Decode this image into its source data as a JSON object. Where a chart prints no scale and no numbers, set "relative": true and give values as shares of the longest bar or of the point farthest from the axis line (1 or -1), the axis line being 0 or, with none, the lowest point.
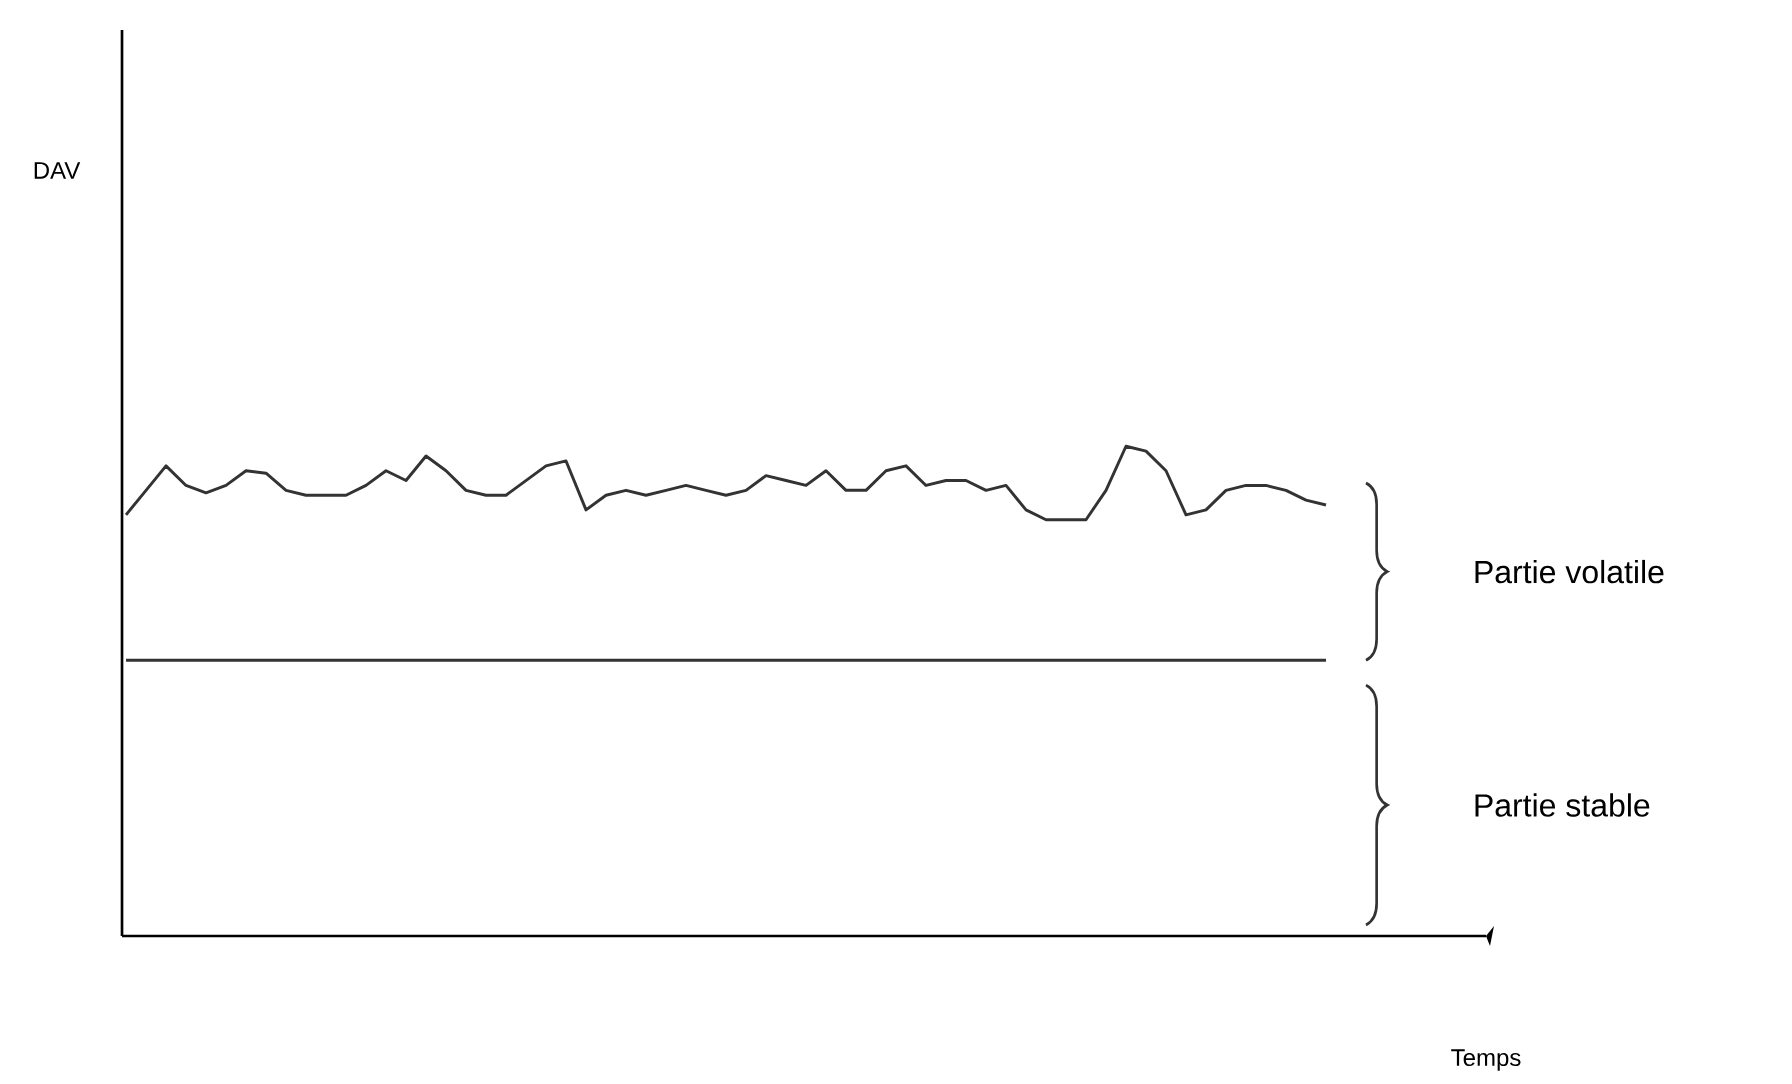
{
  "chart_data": {
    "type": "line",
    "relative": true,
    "tick_labels": false,
    "marker": "none",
    "line_style": "solid",
    "categories": [
      null,
      null,
      null,
      null,
      null,
      null,
      null,
      null,
      null,
      null,
      null,
      null,
      null,
      null,
      null,
      null,
      null,
      null,
      null,
      null,
      null,
      null,
      null,
      null,
      null,
      null,
      null,
      null,
      null,
      null,
      null,
      null,
      null,
      null,
      null,
      null,
      null,
      null,
      null,
      null,
      null,
      null,
      null,
      null,
      null,
      null,
      null,
      null,
      null,
      null,
      null,
      null,
      null,
      null,
      null,
      null,
      null,
      null,
      null,
      null,
      null
    ],
    "series": [
      {
        "color": "#333333",
        "values": [
          0.86,
          0.91,
          0.96,
          0.92,
          0.905,
          0.92,
          0.95,
          0.945,
          0.91,
          0.9,
          0.9,
          0.9,
          0.92,
          0.95,
          0.93,
          0.98,
          0.95,
          0.91,
          0.9,
          0.9,
          0.93,
          0.96,
          0.97,
          0.87,
          0.9,
          0.91,
          0.9,
          0.91,
          0.92,
          0.91,
          0.9,
          0.91,
          0.94,
          0.93,
          0.92,
          0.95,
          0.91,
          0.91,
          0.95,
          0.96,
          0.92,
          0.93,
          0.93,
          0.91,
          0.92,
          0.87,
          0.85,
          0.85,
          0.85,
          0.91,
          1.0,
          0.99,
          0.95,
          0.86,
          0.87,
          0.91,
          0.92,
          0.92,
          0.91,
          0.89,
          0.88
        ]
      },
      {
        "color": "#333333",
        "values": [
          0.563,
          0.563,
          0.563,
          0.563,
          0.563,
          0.563,
          0.563,
          0.563,
          0.563,
          0.563,
          0.563,
          0.563,
          0.563,
          0.563,
          0.563,
          0.563,
          0.563,
          0.563,
          0.563,
          0.563,
          0.563,
          0.563,
          0.563,
          0.563,
          0.563,
          0.563,
          0.563,
          0.563,
          0.563,
          0.563,
          0.563,
          0.563,
          0.563,
          0.563,
          0.563,
          0.563,
          0.563,
          0.563,
          0.563,
          0.563,
          0.563,
          0.563,
          0.563,
          0.563,
          0.563,
          0.563,
          0.563,
          0.563,
          0.563,
          0.563,
          0.563,
          0.563,
          0.563,
          0.563,
          0.563,
          0.563,
          0.563,
          0.563,
          0.563,
          0.563,
          0.563
        ]
      }
    ],
    "annotations": [
      "Partie volatile",
      "Partie stable",
      "DAV",
      "Temps"
    ]
  }
}
